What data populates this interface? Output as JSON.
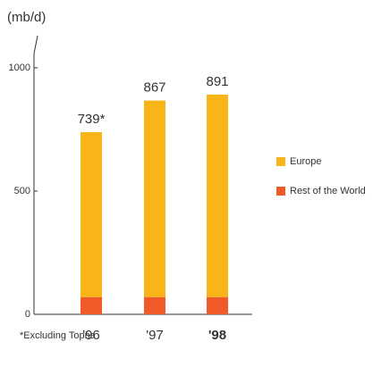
{
  "chart_data": {
    "type": "stacked_bar",
    "y_label": "(mb/d)",
    "categories": [
      "'96",
      "'97",
      "'98"
    ],
    "series": [
      {
        "name": "Rest of the World",
        "color": "#ef5a28",
        "values": [
          70,
          70,
          70
        ]
      },
      {
        "name": "Europe",
        "color": "#f9b517",
        "values": [
          669,
          797,
          821
        ]
      }
    ],
    "totals": [
      739,
      867,
      891
    ],
    "total_labels": [
      "739*",
      "867",
      "891"
    ],
    "ylim": [
      0,
      1130
    ],
    "yticks": [
      0,
      500,
      1000
    ],
    "legend": "right",
    "footnote": "*Excluding Topna"
  }
}
